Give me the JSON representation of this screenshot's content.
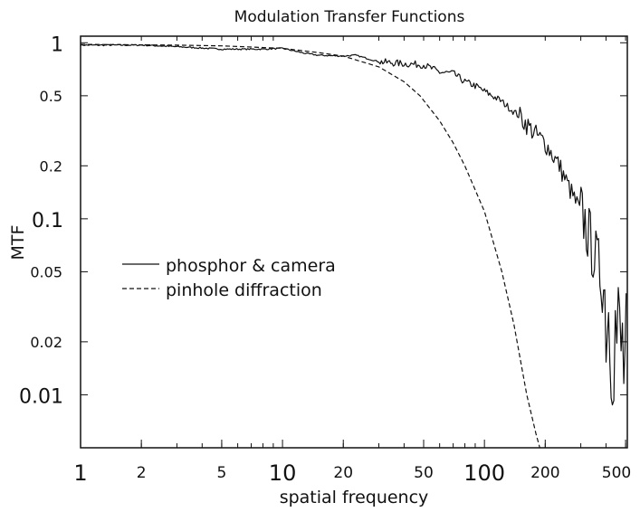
{
  "chart_data": {
    "type": "line",
    "title": "Modulation Transfer Functions",
    "xlabel": "spatial frequency",
    "ylabel": "MTF",
    "xscale": "log",
    "yscale": "log",
    "xlim": [
      1,
      510
    ],
    "ylim": [
      0.005,
      1.09
    ],
    "xticks": [
      {
        "value": 1,
        "label": "1",
        "major": true
      },
      {
        "value": 2,
        "label": "2",
        "major": false
      },
      {
        "value": 5,
        "label": "5",
        "major": false
      },
      {
        "value": 10,
        "label": "10",
        "major": true
      },
      {
        "value": 20,
        "label": "20",
        "major": false
      },
      {
        "value": 50,
        "label": "50",
        "major": false
      },
      {
        "value": 100,
        "label": "100",
        "major": true
      },
      {
        "value": 200,
        "label": "200",
        "major": false
      },
      {
        "value": 500,
        "label": "500",
        "major": false
      }
    ],
    "yticks": [
      {
        "value": 1,
        "label": "1",
        "major": true
      },
      {
        "value": 0.5,
        "label": "0.5",
        "major": false
      },
      {
        "value": 0.2,
        "label": "0.2",
        "major": false
      },
      {
        "value": 0.1,
        "label": "0.1",
        "major": true
      },
      {
        "value": 0.05,
        "label": "0.05",
        "major": false
      },
      {
        "value": 0.02,
        "label": "0.02",
        "major": false
      },
      {
        "value": 0.01,
        "label": "0.01",
        "major": true
      }
    ],
    "legend_position": "center-left",
    "series": [
      {
        "name": "phosphor & camera",
        "style": "solid",
        "x": [
          1,
          2,
          3,
          5,
          8,
          10,
          13,
          15,
          20,
          23,
          30,
          40,
          50,
          60,
          70,
          80,
          90,
          100,
          120,
          150,
          180,
          200,
          235,
          270,
          310,
          340,
          373,
          400,
          430,
          460,
          490,
          510
        ],
        "y": [
          0.97,
          0.97,
          0.95,
          0.92,
          0.92,
          0.93,
          0.87,
          0.85,
          0.84,
          0.85,
          0.78,
          0.76,
          0.75,
          0.68,
          0.67,
          0.6,
          0.57,
          0.53,
          0.47,
          0.38,
          0.3,
          0.27,
          0.2,
          0.14,
          0.1,
          0.07,
          0.05,
          0.035,
          0.025,
          0.02,
          0.015,
          0.012
        ]
      },
      {
        "name": "pinhole diffraction",
        "style": "dashed",
        "x": [
          1,
          3,
          5,
          10,
          15,
          20,
          30,
          40,
          48,
          60,
          70,
          80,
          100,
          122,
          140,
          162,
          180,
          188
        ],
        "y": [
          0.98,
          0.97,
          0.96,
          0.93,
          0.88,
          0.84,
          0.73,
          0.6,
          0.5,
          0.36,
          0.27,
          0.2,
          0.11,
          0.05,
          0.025,
          0.01,
          0.006,
          0.005
        ]
      }
    ]
  }
}
